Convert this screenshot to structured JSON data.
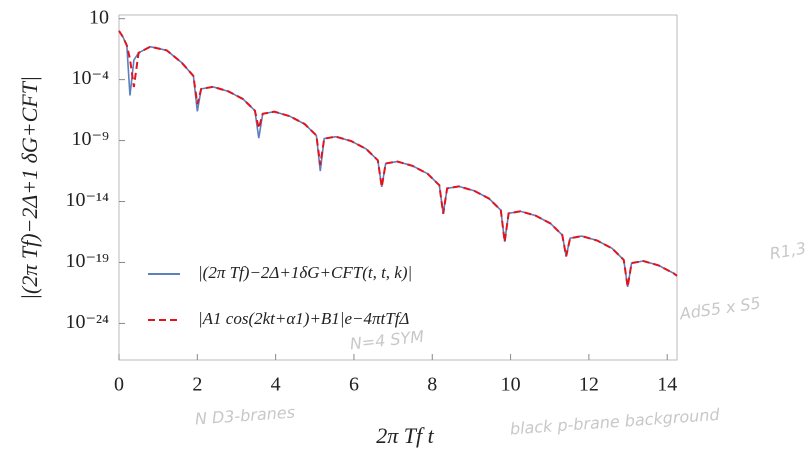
{
  "chart_data": {
    "type": "line",
    "x_label": "2π Tf t",
    "y_label": "|(2π Tf)−2Δ+1 δG+CFT|",
    "background_notes": [
      "N D3-branes",
      "black p-brane background",
      "AdS5 x S5",
      "N=4 SYM",
      "R1,3"
    ],
    "x": [
      0,
      0.1,
      0.2,
      0.28,
      0.38,
      0.5,
      0.8,
      1.22,
      1.6,
      1.9,
      2.0,
      2.1,
      2.4,
      2.79,
      3.17,
      3.47,
      3.57,
      3.67,
      3.97,
      4.36,
      4.74,
      5.04,
      5.14,
      5.24,
      5.54,
      5.93,
      6.31,
      6.61,
      6.71,
      6.81,
      7.11,
      7.5,
      7.88,
      8.18,
      8.28,
      8.38,
      8.68,
      9.07,
      9.45,
      9.75,
      9.85,
      9.95,
      10.25,
      10.64,
      11.02,
      11.32,
      11.42,
      11.52,
      11.82,
      12.21,
      12.59,
      12.89,
      12.99,
      13.09,
      13.39,
      13.78,
      14.16,
      14.25
    ],
    "series": [
      {
        "name": "|(2π Tf)−2Δ+1δG+CFT(t, t, k)|",
        "color": "#5b7fbf",
        "dash": false,
        "values": [
          1,
          0.316,
          0.063,
          5e-06,
          0.004,
          0.0158,
          0.05,
          0.025,
          0.0025,
          0.0002,
          2.5e-07,
          1.74e-05,
          2.57e-05,
          1.1e-05,
          2.51e-06,
          2.88e-07,
          1.58e-09,
          1.58e-07,
          2.34e-07,
          1e-07,
          2.29e-08,
          2.63e-09,
          3.16e-12,
          1.45e-09,
          2.09e-09,
          9.12e-10,
          2.09e-10,
          2.4e-11,
          1.58e-13,
          1.32e-11,
          1.91e-11,
          8.32e-12,
          1.91e-12,
          2.19e-13,
          1e-15,
          1.2e-13,
          1.74e-13,
          7.59e-14,
          1.74e-14,
          1.95e-15,
          5.01e-18,
          1.07e-15,
          1.58e-15,
          6.92e-16,
          1.58e-16,
          1.78e-17,
          3.16e-19,
          9.77e-18,
          1.45e-17,
          6.31e-18,
          1.45e-18,
          1.62e-19,
          1e-21,
          8.91e-20,
          1.32e-19,
          5.75e-20,
          1.32e-20,
          8.13e-21
        ]
      },
      {
        "name": "|A1 cos(2kt+α1)+B1|e−4πtTfΔ",
        "color": "#e0141e",
        "dash": true,
        "values": [
          1,
          0.316,
          0.063,
          0.005,
          2.5e-05,
          0.0158,
          0.05,
          0.025,
          0.0025,
          0.0002,
          1e-06,
          1.74e-05,
          2.57e-05,
          1.1e-05,
          2.51e-06,
          2.88e-07,
          1e-08,
          1.58e-07,
          2.34e-07,
          1e-07,
          2.29e-08,
          2.63e-09,
          1e-11,
          1.45e-09,
          2.09e-09,
          9.12e-10,
          2.09e-10,
          2.4e-11,
          1.58e-13,
          1.32e-11,
          1.91e-11,
          8.32e-12,
          1.91e-12,
          2.19e-13,
          1e-15,
          1.2e-13,
          1.74e-13,
          7.59e-14,
          1.74e-14,
          1.95e-15,
          5.01e-18,
          1.07e-15,
          1.58e-15,
          6.92e-16,
          1.58e-16,
          1.78e-17,
          3.16e-19,
          9.77e-18,
          1.45e-17,
          6.31e-18,
          1.45e-18,
          1.62e-19,
          1e-21,
          8.91e-20,
          1.32e-19,
          5.75e-20,
          1.32e-20,
          8.13e-21
        ]
      }
    ],
    "xlim": [
      0,
      14.25
    ],
    "xticks": [
      0,
      2,
      4,
      6,
      8,
      10,
      12,
      14
    ],
    "ylim": [
      1e-27,
      20
    ],
    "log_y": true,
    "yticks": [
      10,
      {
        "value": 0.0001,
        "label": "10⁻⁴"
      },
      {
        "value": 1e-09,
        "label": "10⁻⁹"
      },
      {
        "value": 1e-14,
        "label": "10⁻¹⁴"
      },
      {
        "value": 1e-19,
        "label": "10⁻¹⁹"
      },
      {
        "value": 1e-24,
        "label": "10⁻²⁴"
      }
    ],
    "legend": "bottom-left"
  }
}
